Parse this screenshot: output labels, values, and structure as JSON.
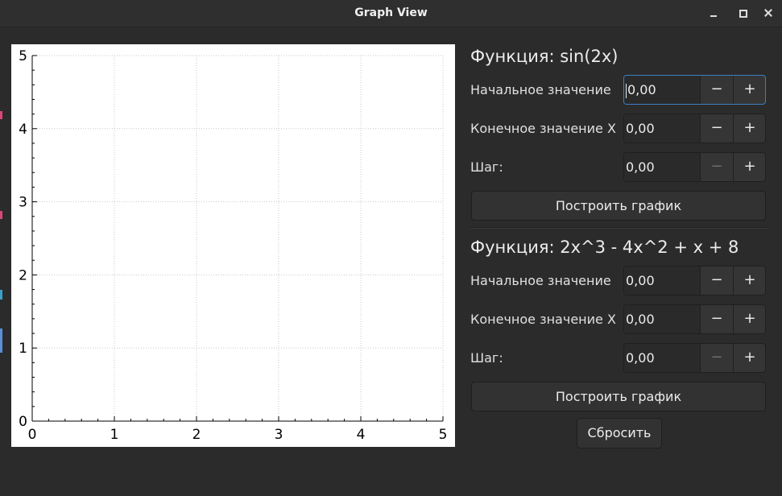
{
  "window": {
    "title": "Graph View"
  },
  "chart_data": {
    "type": "line",
    "title": "",
    "xlabel": "",
    "ylabel": "",
    "xlim": [
      0,
      5
    ],
    "ylim": [
      0,
      5
    ],
    "xticks": [
      "0",
      "1",
      "2",
      "3",
      "4",
      "5"
    ],
    "yticks": [
      "0",
      "1",
      "2",
      "3",
      "4",
      "5"
    ],
    "grid": true,
    "series": []
  },
  "function1": {
    "title": "Функция: sin(2x)",
    "start_label": "Начальное значение",
    "start_value": "0,00",
    "end_label": "Конечное значение Х",
    "end_value": "0,00",
    "step_label": "Шаг:",
    "step_value": "0,00",
    "plot_button": "Построить график"
  },
  "function2": {
    "title": "Функция: 2x^3 - 4x^2 + x + 8",
    "start_label": "Начальное значение",
    "start_value": "0,00",
    "end_label": "Конечное значение Х",
    "end_value": "0,00",
    "step_label": "Шаг:",
    "step_value": "0,00",
    "plot_button": "Построить график"
  },
  "spin": {
    "minus": "−",
    "plus": "+"
  },
  "reset_button": "Сбросить"
}
